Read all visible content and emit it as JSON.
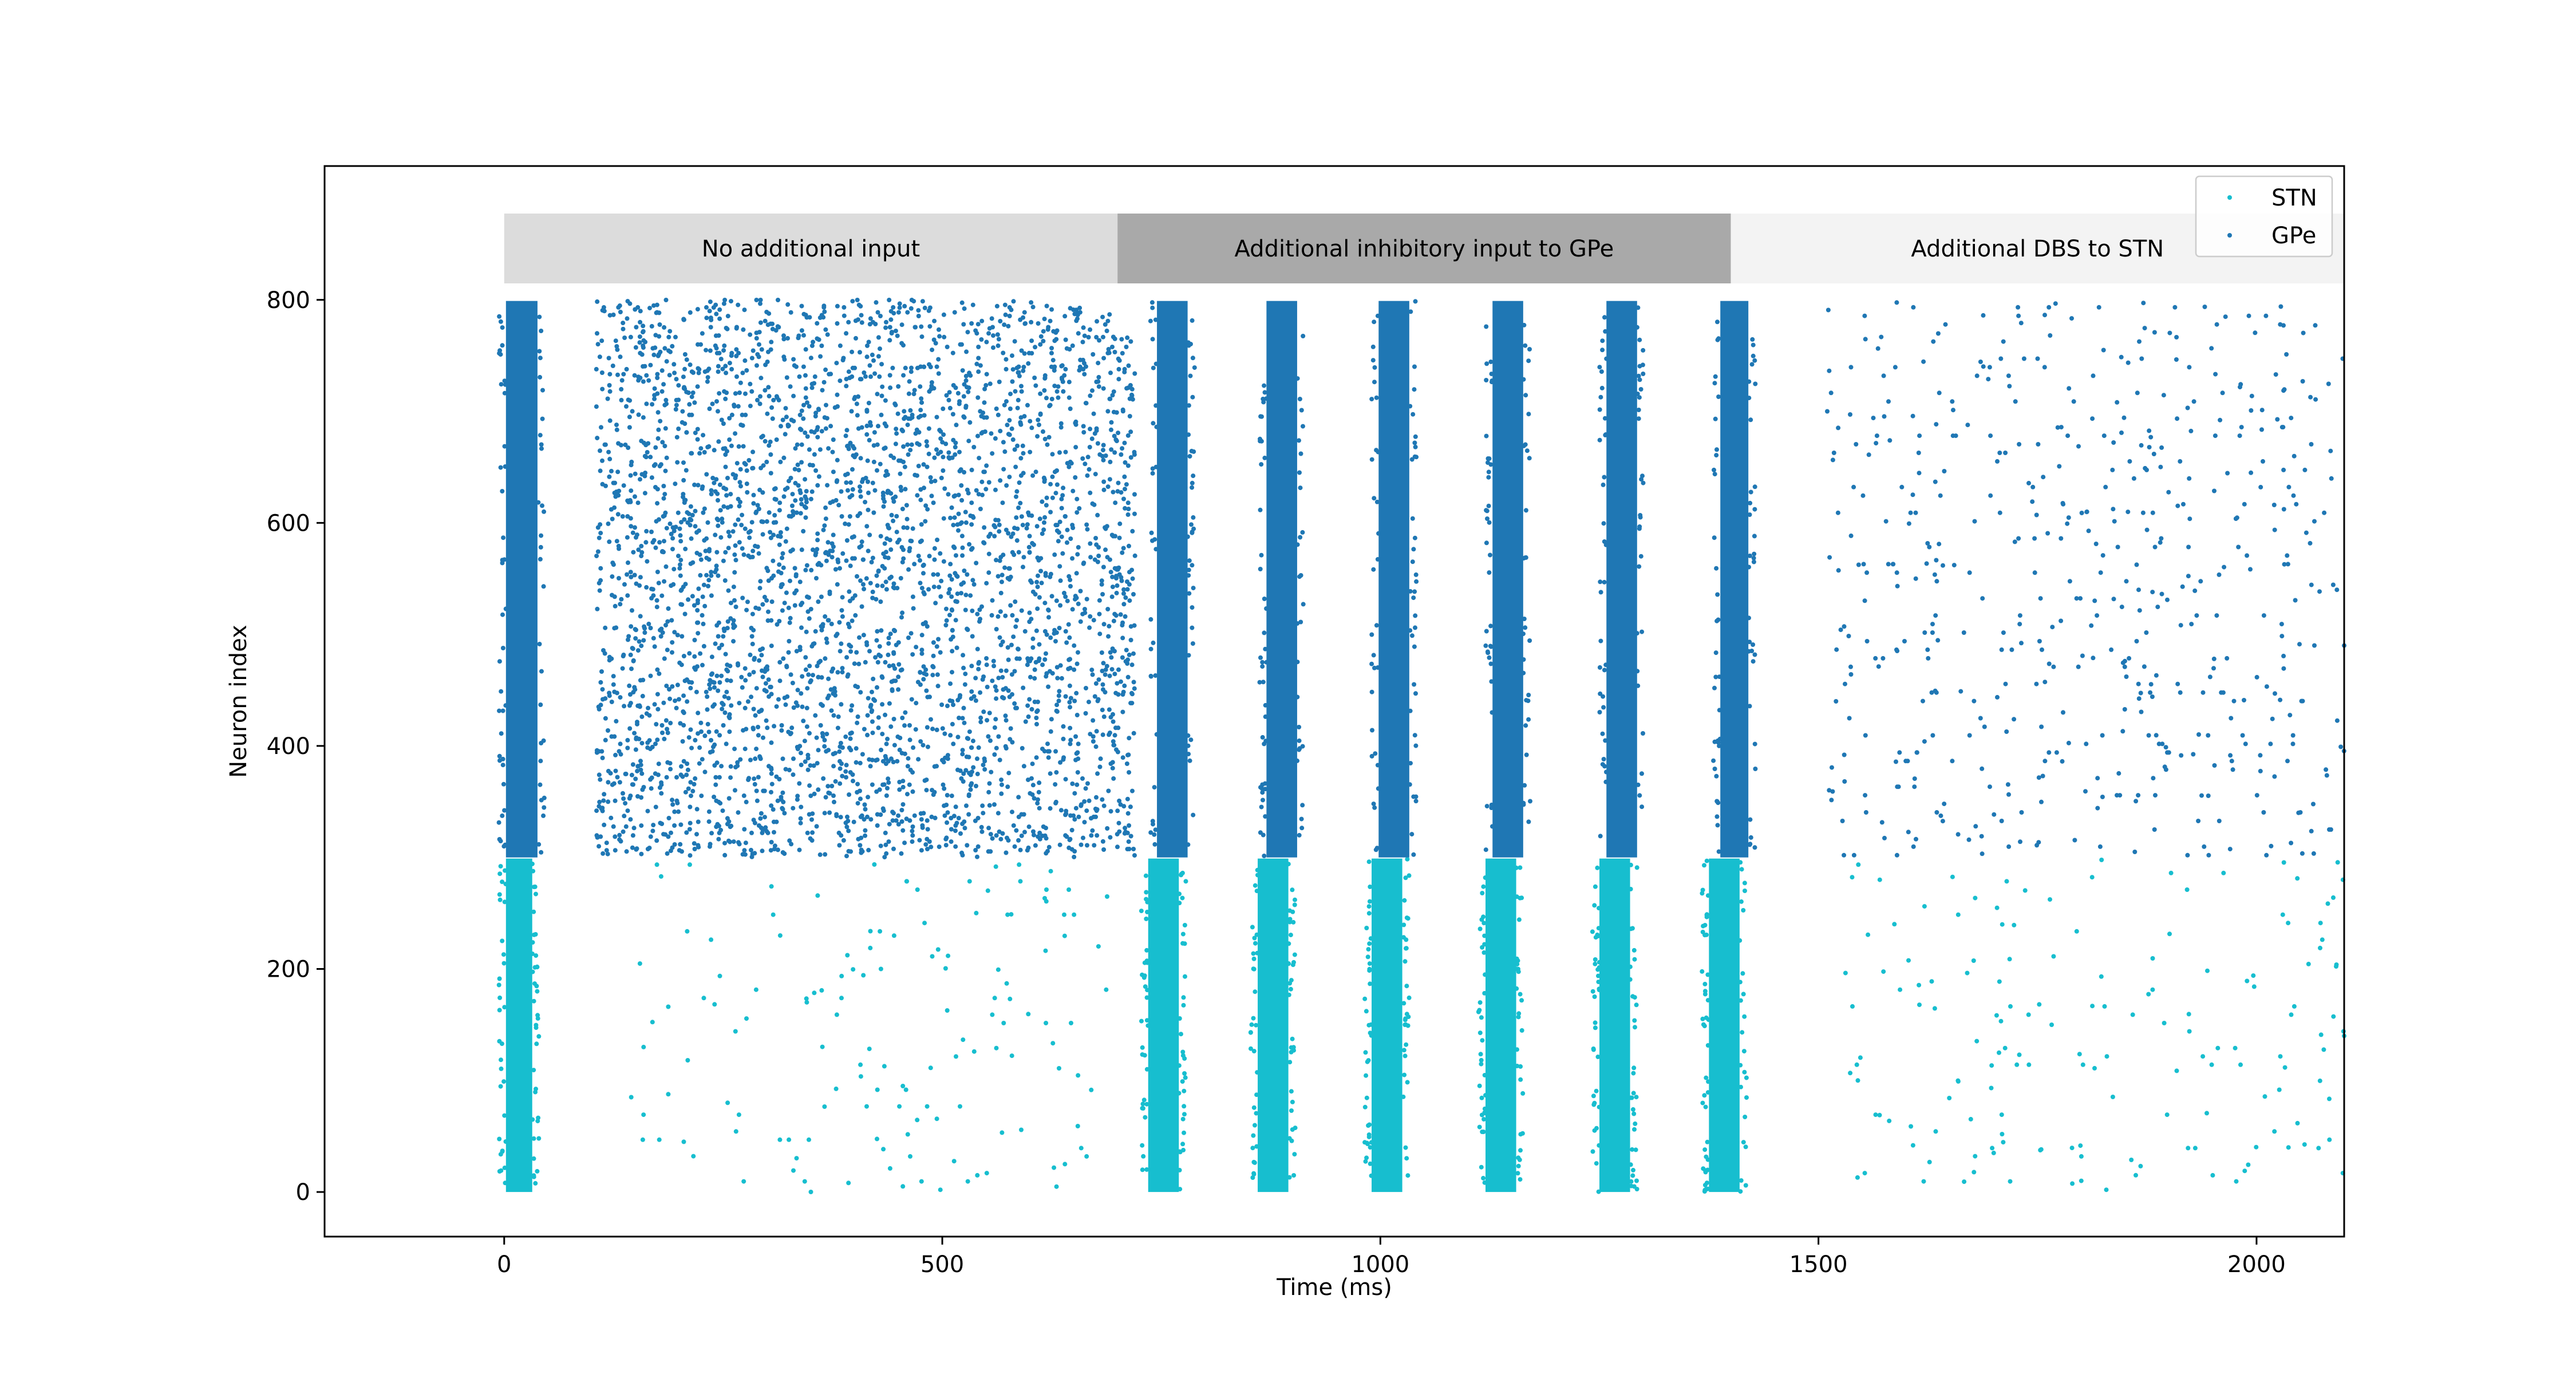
{
  "chart_data": {
    "type": "scatter",
    "title": "",
    "xlabel": "Time (ms)",
    "ylabel": "Neuron index",
    "xlim": [
      -205,
      2100
    ],
    "ylim": [
      -40,
      920
    ],
    "xticks": [
      0,
      500,
      1000,
      1500,
      2000
    ],
    "yticks": [
      0,
      200,
      400,
      600,
      800
    ],
    "grid": false,
    "legend_position": "top-right",
    "phases": [
      {
        "label": "No additional input",
        "x_start": 0,
        "x_end": 700,
        "color": "#dcdcdc"
      },
      {
        "label": "Additional inhibitory input to GPe",
        "x_start": 700,
        "x_end": 1400,
        "color": "#a9a9a9"
      },
      {
        "label": "Additional DBS to STN",
        "x_start": 1400,
        "x_end": 2100,
        "color": "#f3f3f3"
      }
    ],
    "series": [
      {
        "name": "STN",
        "color": "#17becf",
        "neuron_range": [
          0,
          299
        ],
        "dense_bursts": [
          {
            "x_start": 2,
            "x_end": 32
          },
          {
            "x_start": 735,
            "x_end": 770
          },
          {
            "x_start": 860,
            "x_end": 895
          },
          {
            "x_start": 990,
            "x_end": 1025
          },
          {
            "x_start": 1120,
            "x_end": 1155
          },
          {
            "x_start": 1250,
            "x_end": 1285
          },
          {
            "x_start": 1375,
            "x_end": 1410
          }
        ],
        "sparse_spiking": [
          {
            "x_start": 150,
            "x_end": 690,
            "approx_count": 130
          },
          {
            "x_start": 1525,
            "x_end": 2100,
            "approx_count": 150
          }
        ],
        "isolated_points": [
          {
            "x": 145,
            "y": 85
          },
          {
            "x": 205,
            "y": 45
          },
          {
            "x": 255,
            "y": 80
          },
          {
            "x": 315,
            "y": 230
          },
          {
            "x": 430,
            "y": 200
          },
          {
            "x": 455,
            "y": 95
          },
          {
            "x": 455,
            "y": 5
          },
          {
            "x": 540,
            "y": 15
          },
          {
            "x": 640,
            "y": 25
          },
          {
            "x": 1545,
            "y": 100
          },
          {
            "x": 1570,
            "y": 280
          },
          {
            "x": 1700,
            "y": 35
          },
          {
            "x": 1800,
            "y": 10
          },
          {
            "x": 1950,
            "y": 15
          },
          {
            "x": 2100,
            "y": 140
          }
        ]
      },
      {
        "name": "GPe",
        "color": "#1f77b4",
        "neuron_range": [
          300,
          799
        ],
        "dense_bursts": [
          {
            "x_start": 2,
            "x_end": 38
          },
          {
            "x_start": 745,
            "x_end": 780
          },
          {
            "x_start": 870,
            "x_end": 905
          },
          {
            "x_start": 998,
            "x_end": 1033
          },
          {
            "x_start": 1128,
            "x_end": 1163
          },
          {
            "x_start": 1258,
            "x_end": 1293
          },
          {
            "x_start": 1388,
            "x_end": 1420
          }
        ],
        "sparse_spiking": [
          {
            "x_start": 105,
            "x_end": 720,
            "approx_count": 3600
          },
          {
            "x_start": 1510,
            "x_end": 2100,
            "approx_count": 520
          }
        ],
        "isolated_points": [
          {
            "x": 108,
            "y": 310
          },
          {
            "x": 112,
            "y": 720
          },
          {
            "x": 870,
            "y": 475
          },
          {
            "x": 1510,
            "y": 700
          },
          {
            "x": 1520,
            "y": 440
          },
          {
            "x": 2100,
            "y": 490
          }
        ]
      }
    ]
  }
}
